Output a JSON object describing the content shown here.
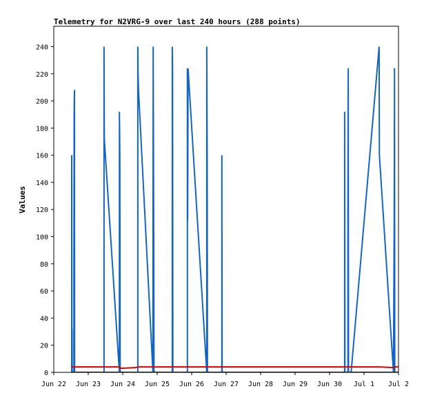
{
  "chart_data": {
    "type": "line",
    "title": "Telemetry for N2VRG-9 over last 240 hours (288 points)",
    "xlabel": "",
    "ylabel": "Values",
    "ylim": [
      0,
      255
    ],
    "xlim_hours": [
      0,
      240
    ],
    "x_tick_labels": [
      "Jun 22",
      "Jun 23",
      "Jun 24",
      "Jun 25",
      "Jun 26",
      "Jun 27",
      "Jun 28",
      "Jun 29",
      "Jun 30",
      "Jul 1",
      "Jul 2"
    ],
    "y_ticks": [
      0,
      20,
      40,
      60,
      80,
      100,
      120,
      140,
      160,
      180,
      200,
      220,
      240
    ],
    "grid": false,
    "series": [
      {
        "color": "#1565c0",
        "points": [
          [
            12.5,
            0
          ],
          [
            12.5,
            160
          ],
          [
            12.6,
            0
          ],
          [
            12.7,
            32
          ],
          [
            12.8,
            0
          ],
          [
            14.0,
            0
          ],
          [
            14.0,
            80
          ],
          [
            14.2,
            192
          ],
          [
            14.4,
            208
          ],
          [
            14.5,
            0
          ],
          [
            35.0,
            0
          ],
          [
            35.0,
            240
          ],
          [
            35.2,
            172
          ],
          [
            45.7,
            0
          ],
          [
            45.7,
            192
          ],
          [
            46.0,
            160
          ],
          [
            46.2,
            0
          ],
          [
            58.5,
            0
          ],
          [
            58.5,
            240
          ],
          [
            58.7,
            220
          ],
          [
            59.0,
            208
          ],
          [
            69.0,
            0
          ],
          [
            69.2,
            240
          ],
          [
            69.6,
            96
          ],
          [
            69.8,
            0
          ],
          [
            82.5,
            0
          ],
          [
            82.5,
            240
          ],
          [
            82.7,
            224
          ],
          [
            82.9,
            0
          ],
          [
            93.0,
            0
          ],
          [
            93.0,
            224
          ],
          [
            93.2,
            112
          ],
          [
            93.5,
            224
          ],
          [
            106.5,
            0
          ],
          [
            106.5,
            240
          ],
          [
            106.8,
            160
          ],
          [
            107.0,
            0
          ],
          [
            117.0,
            0
          ],
          [
            117.0,
            160
          ],
          [
            117.2,
            0
          ],
          [
            202.5,
            0
          ],
          [
            202.5,
            192
          ],
          [
            202.7,
            0
          ],
          [
            204.8,
            0
          ],
          [
            204.8,
            128
          ],
          [
            205.0,
            224
          ],
          [
            205.2,
            0
          ],
          [
            207.0,
            0
          ],
          [
            226.5,
            240
          ],
          [
            226.7,
            160
          ],
          [
            236.5,
            0
          ],
          [
            237.0,
            112
          ],
          [
            237.2,
            224
          ],
          [
            237.4,
            0
          ],
          [
            251.5,
            0
          ],
          [
            251.5,
            240
          ],
          [
            251.7,
            192
          ],
          [
            251.9,
            200
          ],
          [
            252.0,
            0
          ]
        ]
      },
      {
        "color": "#d50000",
        "points": [
          [
            12.0,
            4
          ],
          [
            45.5,
            4
          ],
          [
            46.5,
            3
          ],
          [
            57.0,
            3.5
          ],
          [
            58.5,
            4
          ],
          [
            225.0,
            4
          ],
          [
            226.5,
            4
          ],
          [
            237.0,
            3.5
          ],
          [
            238.0,
            4
          ],
          [
            252.0,
            4
          ]
        ]
      },
      {
        "color": "#000000",
        "points": [
          [
            12.0,
            0
          ],
          [
            252.0,
            0
          ]
        ]
      }
    ]
  }
}
